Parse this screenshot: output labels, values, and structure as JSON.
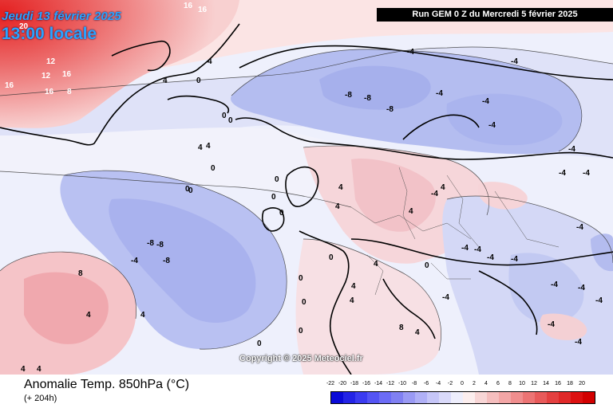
{
  "header": {
    "valid_date": "Jeudi 13 février 2025",
    "local_time": "13:00 locale",
    "run_info": "Run GEM 0 Z du Mercredi 5 février 2025"
  },
  "copyright": "Copyright © 2025 Meteociel.fr",
  "footer": {
    "product_title": "Anomalie Temp. 850hPa (°C)",
    "lead_time": "(+ 204h)"
  },
  "legend": {
    "labels": [
      "-22",
      "-20",
      "-18",
      "-16",
      "-14",
      "-12",
      "-10",
      "-8",
      "-6",
      "-4",
      "-2",
      "0",
      "2",
      "4",
      "6",
      "8",
      "10",
      "12",
      "14",
      "16",
      "18",
      "20"
    ],
    "colors": [
      "#0a0ad8",
      "#2323e6",
      "#3b3bf0",
      "#5454f4",
      "#6c6cf6",
      "#8080f2",
      "#9a9af4",
      "#b0b0f6",
      "#c6c6f8",
      "#dadafa",
      "#eeeefc",
      "#fceeee",
      "#f8d6d6",
      "#f5bebe",
      "#f3a6a6",
      "#f08e8e",
      "#ec7474",
      "#e85a5a",
      "#e44040",
      "#e02828",
      "#dc1010",
      "#d20000"
    ]
  },
  "map_labels": [
    "16",
    "16",
    "20",
    "12",
    "16",
    "12",
    "16",
    "8",
    "16",
    "-4",
    "4",
    "0",
    "4",
    "0",
    "0",
    "4",
    "4",
    "0",
    "-8",
    "-8",
    "-8",
    "-4",
    "-4",
    "-4",
    "-4",
    "-4",
    "-4",
    "0",
    "0",
    "0",
    "0",
    "0",
    "4",
    "4",
    "4",
    "4",
    "-4",
    "-4",
    "-4",
    "-4",
    "-4",
    "-8",
    "-8",
    "-8",
    "-4",
    "4",
    "8",
    "4",
    "4",
    "4",
    "0",
    "0",
    "0",
    "0",
    "-4",
    "-4",
    "-4",
    "-4",
    "0",
    "-4",
    "4",
    "-4",
    "4",
    "0",
    "4",
    "8",
    "4",
    "-4",
    "-4"
  ]
}
